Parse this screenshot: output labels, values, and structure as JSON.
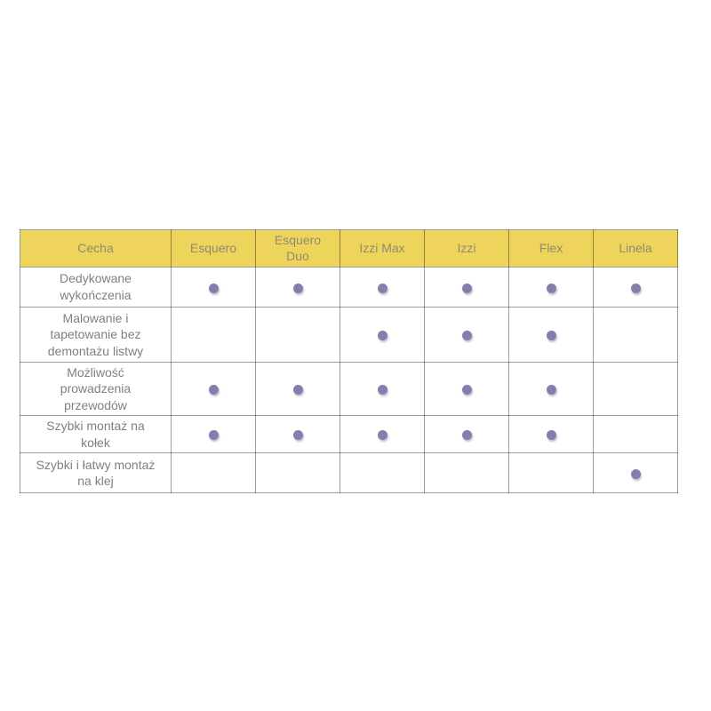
{
  "chart_data": {
    "type": "table",
    "title": "",
    "columns": [
      "Cecha",
      "Esquero",
      "Esquero Duo",
      "Izzi Max",
      "Izzi",
      "Flex",
      "Linela"
    ],
    "rows": [
      {
        "feature": "Dedykowane wykończenia",
        "values": [
          true,
          true,
          true,
          true,
          true,
          true
        ]
      },
      {
        "feature": "Malowanie i tapetowanie bez demontażu listwy",
        "values": [
          false,
          false,
          true,
          true,
          true,
          false
        ]
      },
      {
        "feature": "Możliwość prowadzenia przewodów",
        "values": [
          true,
          true,
          true,
          true,
          true,
          false
        ]
      },
      {
        "feature": "Szybki montaż na kołek",
        "values": [
          true,
          true,
          true,
          true,
          true,
          false
        ]
      },
      {
        "feature": "Szybki i łatwy montaż na klej",
        "values": [
          false,
          false,
          false,
          false,
          false,
          true
        ]
      }
    ],
    "value_marker": "dot = feature available",
    "layout_hints": {
      "header_row": true,
      "grid": true,
      "first_column_wide": true
    }
  },
  "colors": {
    "header_bg": "#efd45c",
    "header_text": "#8f8a72",
    "body_text": "#7d8083",
    "dot": "#8180ad",
    "border": "rgba(0,0,0,0.38)"
  }
}
